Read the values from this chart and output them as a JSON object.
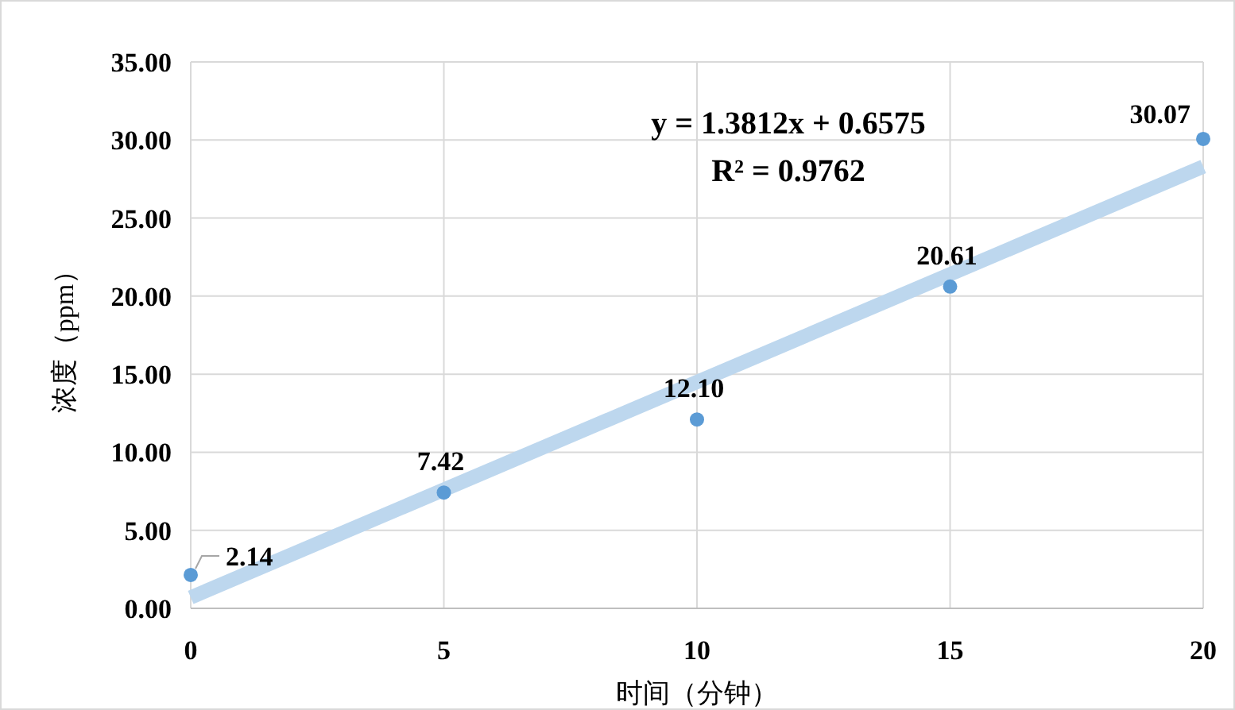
{
  "chart_data": {
    "type": "scatter",
    "xlabel": "时间（分钟）",
    "ylabel": "浓度（ppm）",
    "xlim": [
      0,
      20
    ],
    "ylim": [
      0,
      35
    ],
    "xticks": [
      0,
      5,
      10,
      15,
      20
    ],
    "yticks": [
      {
        "value": 0,
        "label": "0.00"
      },
      {
        "value": 5,
        "label": "5.00"
      },
      {
        "value": 10,
        "label": "10.00"
      },
      {
        "value": 15,
        "label": "15.00"
      },
      {
        "value": 20,
        "label": "20.00"
      },
      {
        "value": 25,
        "label": "25.00"
      },
      {
        "value": 30,
        "label": "30.00"
      },
      {
        "value": 35,
        "label": "35.00"
      }
    ],
    "grid": true,
    "marker": "circle",
    "annotations": [
      "y = 1.3812x + 0.6575",
      "R² = 0.9762"
    ],
    "series": [
      {
        "type": "line",
        "marker": "none",
        "color": "#bdd7ee",
        "x": [
          0,
          20
        ],
        "values": [
          0.7,
          28.3
        ]
      },
      {
        "color": "#5b9bd5",
        "x": [
          0,
          5,
          10,
          15,
          20
        ],
        "values": [
          2.14,
          7.42,
          12.1,
          20.61,
          30.07
        ],
        "value_labels": [
          "2.14",
          "7.42",
          "12.10",
          "20.61",
          "30.07"
        ]
      }
    ]
  }
}
